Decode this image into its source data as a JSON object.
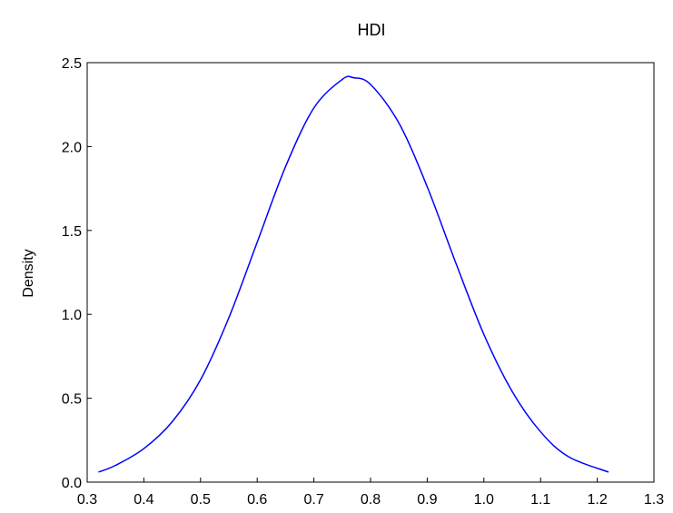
{
  "chart_data": {
    "type": "line",
    "title": "HDI",
    "xlabel": "",
    "ylabel": "Density",
    "xlim": [
      0.3,
      1.3
    ],
    "ylim": [
      0.0,
      2.5
    ],
    "x_ticks": [
      "0.3",
      "0.4",
      "0.5",
      "0.6",
      "0.7",
      "0.8",
      "0.9",
      "1.0",
      "1.1",
      "1.2",
      "1.3"
    ],
    "y_ticks": [
      "0.0",
      "0.5",
      "1.0",
      "1.5",
      "2.0",
      "2.5"
    ],
    "grid": false,
    "line_color": "#0000ff",
    "series": [
      {
        "x": [
          0.32,
          0.35,
          0.4,
          0.45,
          0.5,
          0.55,
          0.6,
          0.65,
          0.7,
          0.75,
          0.77,
          0.8,
          0.85,
          0.9,
          0.95,
          1.0,
          1.05,
          1.1,
          1.15,
          1.22
        ],
        "y": [
          0.06,
          0.1,
          0.2,
          0.36,
          0.61,
          0.98,
          1.43,
          1.88,
          2.23,
          2.4,
          2.41,
          2.37,
          2.14,
          1.76,
          1.31,
          0.88,
          0.54,
          0.3,
          0.15,
          0.06
        ]
      }
    ]
  }
}
